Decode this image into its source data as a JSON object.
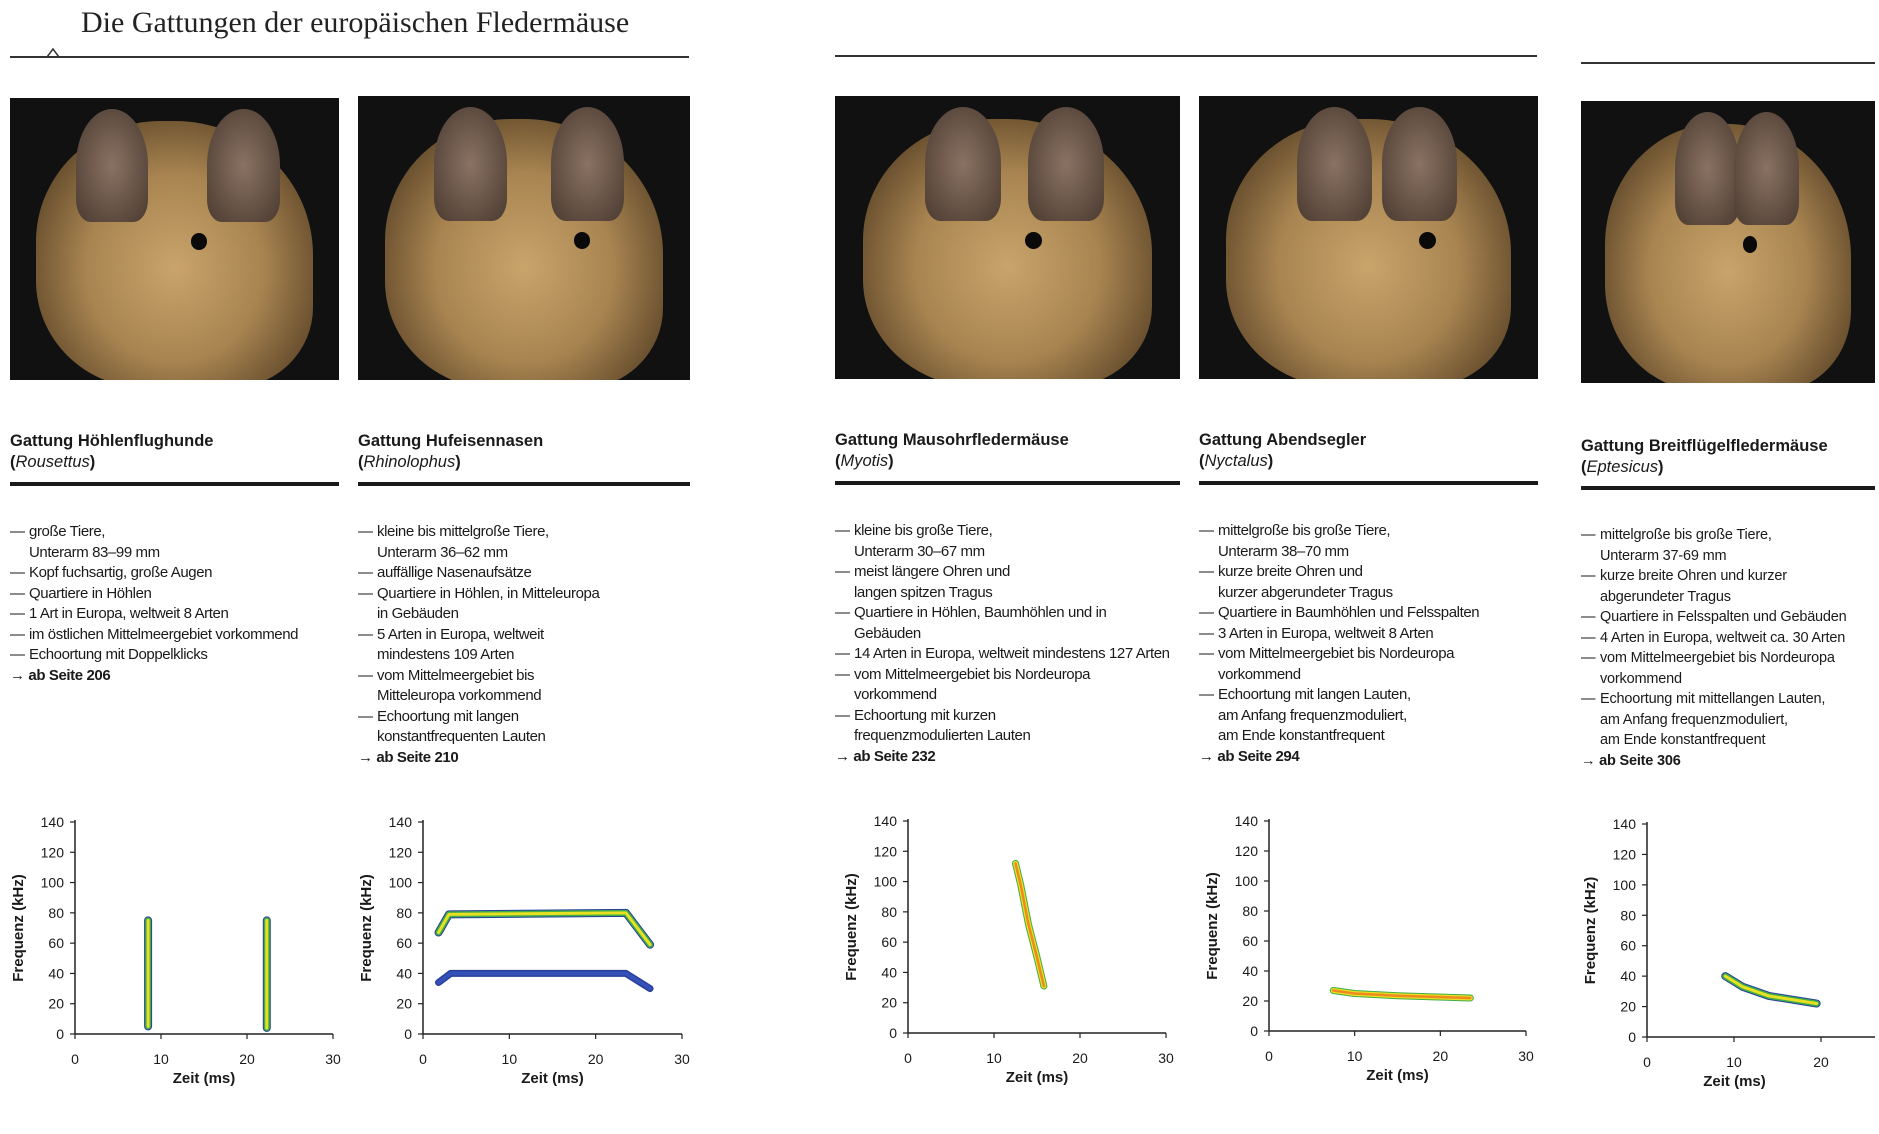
{
  "page_title": "Die Gattungen der europäischen Fledermäuse",
  "more_arrow": "→",
  "genera": [
    {
      "name": "Gattung Höhlenflughunde",
      "latin": "Rousettus",
      "lines": [
        [
          "große Tiere,",
          "Unterarm 83–99 mm"
        ],
        [
          "Kopf fuchsartig, große Augen"
        ],
        [
          "Quartiere in Höhlen"
        ],
        [
          "1 Art in Europa, weltweit 8 Arten"
        ],
        [
          "im östlichen Mittelmeergebiet vorkommend"
        ],
        [
          "Echoortung mit Doppelklicks"
        ]
      ],
      "more": "ab Seite 206"
    },
    {
      "name": "Gattung Hufeisennasen",
      "latin": "Rhinolophus",
      "lines": [
        [
          "kleine bis mittelgroße Tiere,",
          "Unterarm 36–62 mm"
        ],
        [
          "auffällige Nasenaufsätze"
        ],
        [
          "Quartiere in Höhlen, in Mitteleuropa",
          "in Gebäuden"
        ],
        [
          "5 Arten in Europa, weltweit",
          "mindestens 109 Arten"
        ],
        [
          "vom Mittelmeergebiet bis",
          "Mitteleuropa vorkommend"
        ],
        [
          "Echoortung mit langen",
          "konstantfrequenten Lauten"
        ]
      ],
      "more": "ab Seite 210"
    },
    {
      "name": "Gattung Mausohrfledermäuse",
      "latin": "Myotis",
      "lines": [
        [
          "kleine bis große Tiere,",
          "Unterarm 30–67 mm"
        ],
        [
          "meist längere Ohren und",
          "langen spitzen Tragus"
        ],
        [
          "Quartiere in Höhlen, Baumhöhlen und in",
          "Gebäuden"
        ],
        [
          "14 Arten in Europa, weltweit mindestens 127 Arten"
        ],
        [
          "vom Mittelmeergebiet bis Nordeuropa",
          "vorkommend"
        ],
        [
          "Echoortung mit kurzen",
          "frequenzmodulierten Lauten"
        ]
      ],
      "more": "ab Seite 232"
    },
    {
      "name": "Gattung Abendsegler",
      "latin": "Nyctalus",
      "lines": [
        [
          "mittelgroße bis große Tiere,",
          "Unterarm 38–70 mm"
        ],
        [
          "kurze breite Ohren und",
          "kurzer abgerundeter Tragus"
        ],
        [
          "Quartiere in Baumhöhlen und Felsspalten"
        ],
        [
          "3 Arten in Europa, weltweit 8 Arten"
        ],
        [
          "vom Mittelmeergebiet bis Nordeuropa",
          "vorkommend"
        ],
        [
          "Echoortung mit langen Lauten,",
          "am Anfang frequenzmoduliert,",
          "am Ende konstantfrequent"
        ]
      ],
      "more": "ab Seite 294"
    },
    {
      "name": "Gattung Breitflügelfledermäuse",
      "latin": "Eptesicus",
      "lines": [
        [
          "mittelgroße bis große Tiere,",
          "Unterarm 37-69 mm"
        ],
        [
          "kurze breite Ohren und kurzer",
          "abgerundeter Tragus"
        ],
        [
          "Quartiere in Felsspalten und Gebäuden"
        ],
        [
          "4 Arten in Europa, weltweit ca. 30 Arten"
        ],
        [
          "vom Mittelmeergebiet bis Nordeuropa",
          "vorkommend"
        ],
        [
          "Echoortung mit mittellangen Lauten,",
          "am Anfang frequenzmoduliert,",
          "am Ende konstantfrequent"
        ]
      ],
      "more": "ab Seite 306"
    }
  ],
  "chart_data": [
    {
      "type": "scatter",
      "genus": "Rousettus",
      "xlabel": "Zeit (ms)",
      "ylabel": "Frequenz (kHz)",
      "xlim": [
        0,
        30
      ],
      "ylim": [
        0,
        140
      ],
      "xticks": [
        0,
        10,
        20,
        30
      ],
      "yticks": [
        0,
        20,
        40,
        60,
        80,
        100,
        120,
        140
      ],
      "grid": false,
      "series": [
        {
          "points": [
            [
              8.5,
              5
            ],
            [
              8.5,
              75
            ]
          ]
        },
        {
          "points": [
            [
              22.3,
              4
            ],
            [
              22.3,
              75
            ]
          ]
        }
      ]
    },
    {
      "type": "line",
      "genus": "Rhinolophus",
      "xlabel": "Zeit (ms)",
      "ylabel": "Frequenz (kHz)",
      "xlim": [
        0,
        30
      ],
      "ylim": [
        0,
        140
      ],
      "xticks": [
        0,
        10,
        20,
        30
      ],
      "yticks": [
        0,
        20,
        40,
        60,
        80,
        100,
        120,
        140
      ],
      "grid": false,
      "series": [
        {
          "points": [
            [
              1.8,
              67
            ],
            [
              3,
              79
            ],
            [
              23.5,
              80
            ],
            [
              26.3,
              59
            ]
          ]
        },
        {
          "points": [
            [
              1.8,
              34
            ],
            [
              3.2,
              40
            ],
            [
              23.5,
              40
            ],
            [
              26.3,
              30
            ]
          ],
          "style": "blue"
        }
      ]
    },
    {
      "type": "line",
      "genus": "Myotis",
      "xlabel": "Zeit (ms)",
      "ylabel": "Frequenz (kHz)",
      "xlim": [
        0,
        30
      ],
      "ylim": [
        0,
        140
      ],
      "xticks": [
        0,
        10,
        20,
        30
      ],
      "yticks": [
        0,
        20,
        40,
        60,
        80,
        100,
        120,
        140
      ],
      "grid": false,
      "series": [
        {
          "points": [
            [
              12.5,
              112
            ],
            [
              13.1,
              98
            ],
            [
              14,
              72
            ],
            [
              15,
              50
            ],
            [
              15.8,
              31
            ]
          ],
          "style": "warm"
        }
      ]
    },
    {
      "type": "line",
      "genus": "Nyctalus",
      "xlabel": "Zeit (ms)",
      "ylabel": "Frequenz (kHz)",
      "xlim": [
        0,
        30
      ],
      "ylim": [
        0,
        140
      ],
      "xticks": [
        0,
        10,
        20,
        30
      ],
      "yticks": [
        0,
        20,
        40,
        60,
        80,
        100,
        120,
        140
      ],
      "grid": false,
      "series": [
        {
          "points": [
            [
              7.5,
              27
            ],
            [
              10,
              25
            ],
            [
              15,
              23.5
            ],
            [
              23.5,
              22
            ]
          ],
          "style": "warm"
        }
      ]
    },
    {
      "type": "line",
      "genus": "Eptesicus",
      "xlabel": "Zeit (ms)",
      "ylabel": "Frequenz (kHz)",
      "xlim": [
        0,
        30
      ],
      "ylim": [
        0,
        140
      ],
      "xticks": [
        0,
        10,
        20
      ],
      "yticks": [
        0,
        20,
        40,
        60,
        80,
        100,
        120,
        140
      ],
      "grid": false,
      "series": [
        {
          "points": [
            [
              9,
              40
            ],
            [
              11,
              33
            ],
            [
              14,
              27
            ],
            [
              19.5,
              22
            ]
          ]
        }
      ]
    }
  ],
  "colors": {
    "call_outer": "#2a3f9a",
    "call_mid": "#3fae4a",
    "call_inner": "#e8e020",
    "call_hot": "#f08a20",
    "rule": "#1a1a1a"
  }
}
